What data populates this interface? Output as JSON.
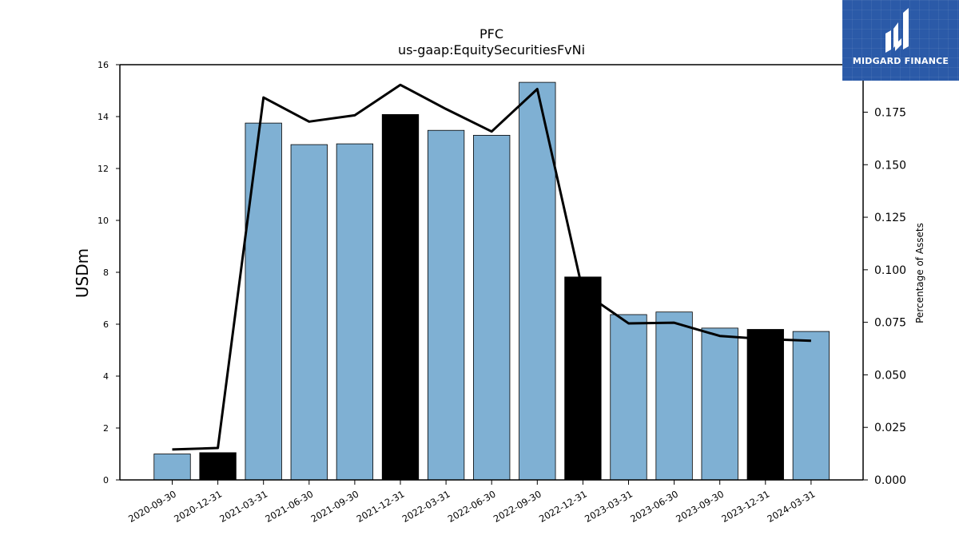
{
  "chart_data": {
    "type": "bar",
    "title": "PFC",
    "subtitle": "us-gaap:EquitySecuritiesFvNi",
    "ylabel": "USDm",
    "y2label": "Percentage of Assets",
    "categories": [
      "2020-09-30",
      "2020-12-31",
      "2021-03-31",
      "2021-06-30",
      "2021-09-30",
      "2021-12-31",
      "2022-03-31",
      "2022-06-30",
      "2022-09-30",
      "2022-12-31",
      "2023-03-31",
      "2023-06-30",
      "2023-09-30",
      "2023-12-31",
      "2024-03-31"
    ],
    "series": [
      {
        "values": [
          1.0,
          1.05,
          13.75,
          12.92,
          12.95,
          14.08,
          13.47,
          13.28,
          15.32,
          7.82,
          6.37,
          6.47,
          5.85,
          5.8,
          5.72
        ],
        "colors": [
          "#7fb0d3",
          "#000000",
          "#7fb0d3",
          "#7fb0d3",
          "#7fb0d3",
          "#000000",
          "#7fb0d3",
          "#7fb0d3",
          "#7fb0d3",
          "#000000",
          "#7fb0d3",
          "#7fb0d3",
          "#7fb0d3",
          "#000000",
          "#7fb0d3"
        ]
      },
      {
        "axis": "right",
        "type": "line",
        "color": "#000000",
        "values": [
          0.0145,
          0.0152,
          0.182,
          0.1705,
          0.1735,
          0.188,
          0.1765,
          0.1658,
          0.186,
          0.0895,
          0.0745,
          0.0748,
          0.0685,
          0.067,
          0.0662
        ]
      }
    ],
    "ylim": [
      0,
      16
    ],
    "y2lim": [
      0,
      0.1976
    ],
    "yticks": [
      "0",
      "2",
      "4",
      "6",
      "8",
      "10",
      "12",
      "14",
      "16"
    ],
    "y2ticks": [
      "0.000",
      "0.025",
      "0.050",
      "0.075",
      "0.100",
      "0.125",
      "0.150",
      "0.175"
    ],
    "grid": false,
    "legend": "none"
  },
  "logo": {
    "text": "MIDGARD FINANCE",
    "accent": "#2b5aa8"
  }
}
